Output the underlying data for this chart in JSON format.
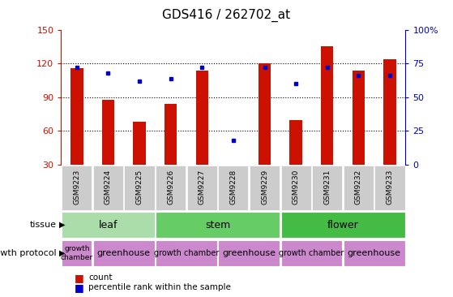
{
  "title": "GDS416 / 262702_at",
  "samples": [
    "GSM9223",
    "GSM9224",
    "GSM9225",
    "GSM9226",
    "GSM9227",
    "GSM9228",
    "GSM9229",
    "GSM9230",
    "GSM9231",
    "GSM9232",
    "GSM9233"
  ],
  "counts": [
    116,
    88,
    68,
    84,
    114,
    30,
    120,
    70,
    135,
    114,
    124
  ],
  "percentiles": [
    72,
    68,
    62,
    64,
    72,
    18,
    72,
    60,
    72,
    66,
    66
  ],
  "ylim": [
    30,
    150
  ],
  "yticks": [
    30,
    60,
    90,
    120,
    150
  ],
  "y2ticks": [
    0,
    25,
    50,
    75,
    100
  ],
  "bar_color": "#cc1100",
  "dot_color": "#0000cc",
  "bar_bottom": 30,
  "tissue_groups": [
    {
      "label": "leaf",
      "start": 0,
      "end": 3,
      "color": "#aaddaa"
    },
    {
      "label": "stem",
      "start": 3,
      "end": 7,
      "color": "#66cc66"
    },
    {
      "label": "flower",
      "start": 7,
      "end": 11,
      "color": "#44bb44"
    }
  ],
  "protocol_groups": [
    {
      "label": "growth\nchamber",
      "start": 0,
      "end": 1,
      "color": "#cc88cc",
      "fontsize": 6.5
    },
    {
      "label": "greenhouse",
      "start": 1,
      "end": 3,
      "color": "#cc88cc",
      "fontsize": 8
    },
    {
      "label": "growth chamber",
      "start": 3,
      "end": 5,
      "color": "#cc88cc",
      "fontsize": 7
    },
    {
      "label": "greenhouse",
      "start": 5,
      "end": 7,
      "color": "#cc88cc",
      "fontsize": 8
    },
    {
      "label": "growth chamber",
      "start": 7,
      "end": 9,
      "color": "#cc88cc",
      "fontsize": 7
    },
    {
      "label": "greenhouse",
      "start": 9,
      "end": 11,
      "color": "#cc88cc",
      "fontsize": 8
    }
  ],
  "tissue_row_label": "tissue",
  "protocol_row_label": "growth protocol",
  "legend_count_label": "count",
  "legend_pct_label": "percentile rank within the sample",
  "grid_color": "black",
  "background_color": "white",
  "left_label_color": "#cc1100",
  "right_label_color": "#0000cc",
  "xtick_bg_color": "#cccccc",
  "grid_yticks": [
    60,
    90,
    120
  ]
}
